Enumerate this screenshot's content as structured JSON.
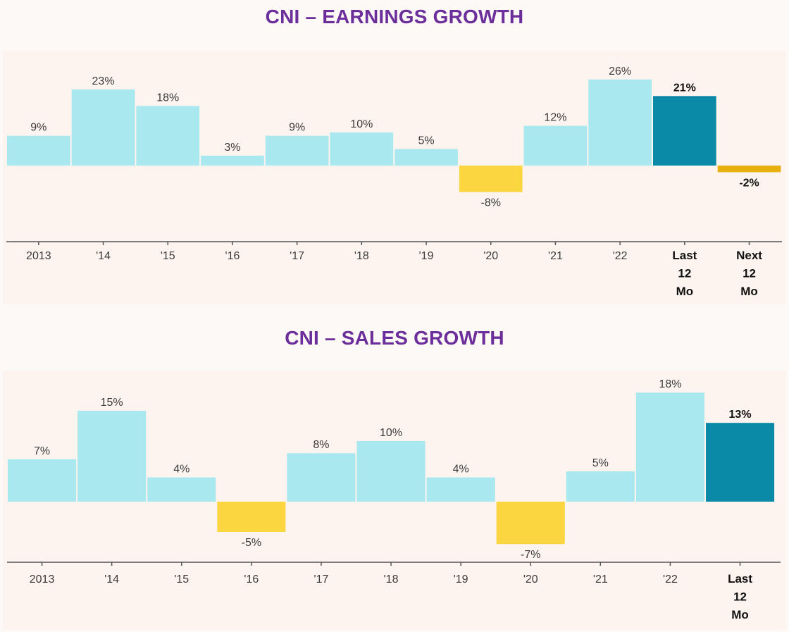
{
  "charts": {
    "earnings_title": "CNI – EARNINGS GROWTH",
    "sales_title": "CNI – SALES GROWTH"
  },
  "colors": {
    "positive": "#aae8ef",
    "negative": "#fcd640",
    "highlight_positive": "#0b8aa8",
    "highlight_negative": "#e7b00f",
    "axis": "#555555",
    "title": "#6b2e9b"
  },
  "chart_data": [
    {
      "type": "bar",
      "title": "CNI – EARNINGS GROWTH",
      "categories": [
        "2013",
        "'14",
        "'15",
        "'16",
        "'17",
        "'18",
        "'19",
        "'20",
        "'21",
        "'22",
        "Last 12 Mo",
        "Next 12 Mo"
      ],
      "values": [
        9,
        23,
        18,
        3,
        9,
        10,
        5,
        -8,
        12,
        26,
        21,
        -2
      ],
      "data_labels": [
        "9%",
        "23%",
        "18%",
        "3%",
        "9%",
        "10%",
        "5%",
        "-8%",
        "12%",
        "26%",
        "21%",
        "-2%"
      ],
      "highlighted": [
        "Last 12 Mo",
        "Next 12 Mo"
      ],
      "unit": "%",
      "ylim": [
        -19,
        26
      ],
      "grid": false,
      "legend": "none"
    },
    {
      "type": "bar",
      "title": "CNI – SALES GROWTH",
      "categories": [
        "2013",
        "'14",
        "'15",
        "'16",
        "'17",
        "'18",
        "'19",
        "'20",
        "'21",
        "'22",
        "Last 12 Mo"
      ],
      "values": [
        7,
        15,
        4,
        -5,
        8,
        10,
        4,
        -7,
        5,
        18,
        13
      ],
      "data_labels": [
        "7%",
        "15%",
        "4%",
        "-5%",
        "8%",
        "10%",
        "4%",
        "-7%",
        "5%",
        "18%",
        "13%"
      ],
      "highlighted": [
        "Last 12 Mo"
      ],
      "unit": "%",
      "ylim": [
        -11,
        18
      ],
      "grid": false,
      "legend": "none"
    }
  ]
}
